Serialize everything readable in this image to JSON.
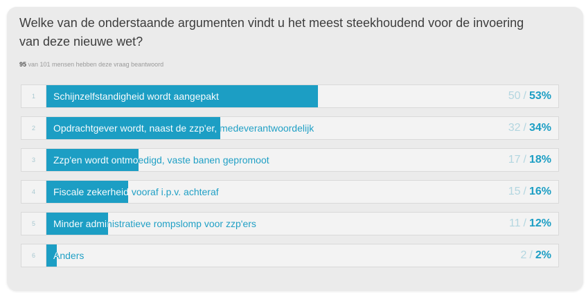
{
  "poll": {
    "question": "Welke van de onderstaande argumenten vindt u het meest steekhoudend voor de invoering van deze nieuwe wet?",
    "respondents": {
      "answered": "95",
      "text": "van 101 mensen hebben deze vraag beantwoord"
    },
    "separator": "/",
    "options": [
      {
        "index": "1",
        "label": "Schijnzelfstandigheid wordt aangepakt",
        "count": "50",
        "percent": "53%",
        "fraction": 0.53
      },
      {
        "index": "2",
        "label": "Opdrachtgever wordt, naast de zzp'er, medeverantwoordelijk",
        "count": "32",
        "percent": "34%",
        "fraction": 0.34
      },
      {
        "index": "3",
        "label": "Zzp'en wordt ontmoedigd, vaste banen gepromoot",
        "count": "17",
        "percent": "18%",
        "fraction": 0.18
      },
      {
        "index": "4",
        "label": "Fiscale zekerheid vooraf i.p.v. achteraf",
        "count": "15",
        "percent": "16%",
        "fraction": 0.16
      },
      {
        "index": "5",
        "label": "Minder administratieve rompslomp voor zzp'ers",
        "count": "11",
        "percent": "12%",
        "fraction": 0.12
      },
      {
        "index": "6",
        "label": "Anders",
        "count": "2",
        "percent": "2%",
        "fraction": 0.02
      }
    ]
  },
  "colors": {
    "bar": "#1c9ec4",
    "label_on_bar": "#ffffff",
    "label_off_bar": "#1c9ec4"
  }
}
